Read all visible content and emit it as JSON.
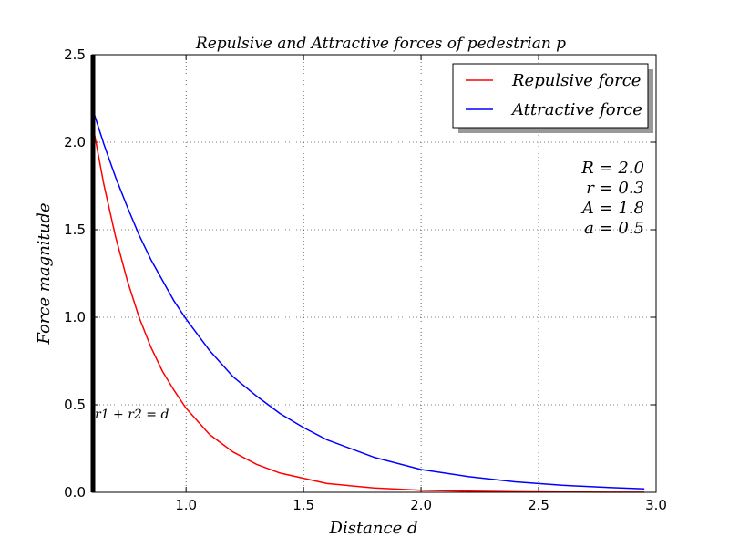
{
  "chart_data": {
    "type": "line",
    "title": "Repulsive and Attractive forces of pedestrian p",
    "xlabel": "Distance d",
    "ylabel": "Force magnitude",
    "xlim": [
      0.6,
      3.0
    ],
    "ylim": [
      0.0,
      2.5
    ],
    "xticks": [
      "1.0",
      "1.5",
      "2.0",
      "2.5",
      "3.0"
    ],
    "yticks": [
      "0.0",
      "0.5",
      "1.0",
      "1.5",
      "2.0",
      "2.5"
    ],
    "grid": true,
    "legend_position": "top-right",
    "series": [
      {
        "name": "Repulsive force",
        "color": "#ff0000",
        "x": [
          0.6,
          0.65,
          0.7,
          0.75,
          0.8,
          0.85,
          0.9,
          0.95,
          1.0,
          1.1,
          1.2,
          1.3,
          1.4,
          1.5,
          1.6,
          1.8,
          2.0,
          2.2,
          2.4,
          2.6,
          2.8,
          2.95
        ],
        "y": [
          2.12,
          1.76,
          1.46,
          1.21,
          1.0,
          0.83,
          0.69,
          0.58,
          0.48,
          0.33,
          0.23,
          0.16,
          0.11,
          0.08,
          0.05,
          0.025,
          0.012,
          0.006,
          0.003,
          0.0015,
          0.0007,
          0.0004
        ]
      },
      {
        "name": "Attractive force",
        "color": "#0000ff",
        "x": [
          0.6,
          0.65,
          0.7,
          0.75,
          0.8,
          0.85,
          0.9,
          0.95,
          1.0,
          1.1,
          1.2,
          1.3,
          1.4,
          1.5,
          1.6,
          1.8,
          2.0,
          2.2,
          2.4,
          2.6,
          2.8,
          2.95
        ],
        "y": [
          2.2,
          1.99,
          1.8,
          1.63,
          1.47,
          1.33,
          1.21,
          1.09,
          0.99,
          0.81,
          0.66,
          0.55,
          0.45,
          0.37,
          0.3,
          0.2,
          0.13,
          0.09,
          0.06,
          0.04,
          0.027,
          0.02
        ]
      }
    ],
    "annotations": {
      "params": [
        "R = 2.0",
        "r = 0.3",
        "A = 1.8",
        "a = 0.5"
      ],
      "boundary_label": "r1 + r2 = d"
    }
  }
}
